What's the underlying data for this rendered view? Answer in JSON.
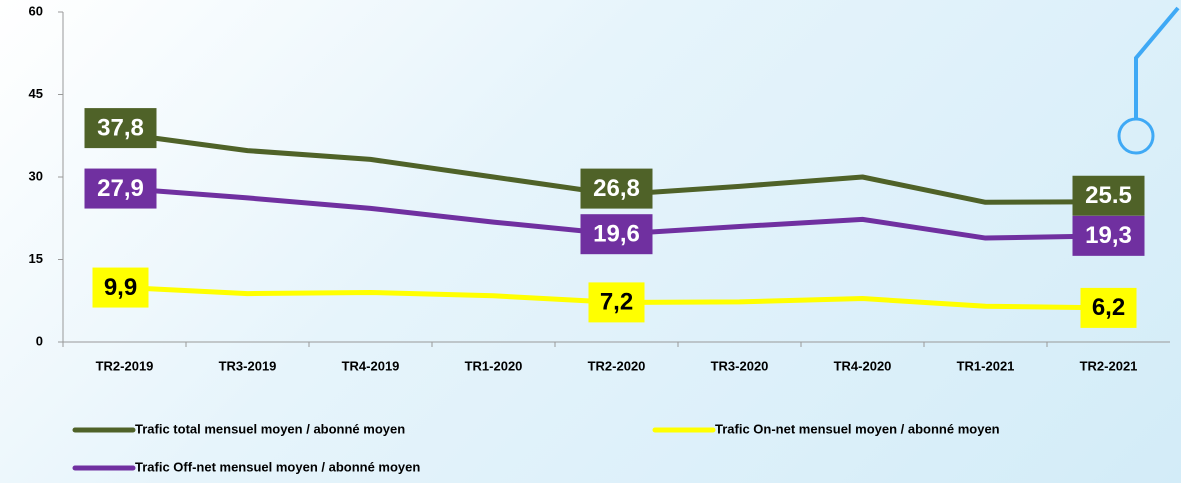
{
  "chart_data": {
    "type": "line",
    "categories": [
      "TR2-2019",
      "TR3-2019",
      "TR4-2019",
      "TR1-2020",
      "TR2-2020",
      "TR3-2020",
      "TR4-2020",
      "TR1-2021",
      "TR2-2021"
    ],
    "series": [
      {
        "name": "Trafic total mensuel moyen / abonné moyen",
        "color": "#4f6228",
        "label_text_color": "#ffffff",
        "values": [
          37.8,
          34.8,
          33.2,
          30.0,
          26.8,
          28.3,
          30.0,
          25.4,
          25.5
        ],
        "value_labels": [
          "37,8",
          null,
          null,
          null,
          "26,8",
          null,
          null,
          null,
          "25.5"
        ]
      },
      {
        "name": "Trafic Off-net mensuel moyen / abonné moyen",
        "color": "#7030a0",
        "label_text_color": "#ffffff",
        "values": [
          27.9,
          26.2,
          24.3,
          21.8,
          19.6,
          21.0,
          22.3,
          18.9,
          19.3
        ],
        "value_labels": [
          "27,9",
          null,
          null,
          null,
          "19,6",
          null,
          null,
          null,
          "19,3"
        ]
      },
      {
        "name": "Trafic On-net mensuel moyen / abonné moyen",
        "color": "#ffff00",
        "label_text_color": "#000000",
        "values": [
          9.9,
          8.8,
          9.0,
          8.4,
          7.2,
          7.3,
          7.9,
          6.5,
          6.2
        ],
        "value_labels": [
          "9,9",
          null,
          null,
          null,
          "7,2",
          null,
          null,
          null,
          "6,2"
        ]
      }
    ],
    "ylim": [
      0,
      60
    ],
    "yticks": [
      0,
      15,
      30,
      45,
      60
    ],
    "grid": false,
    "legend": "bottom"
  }
}
